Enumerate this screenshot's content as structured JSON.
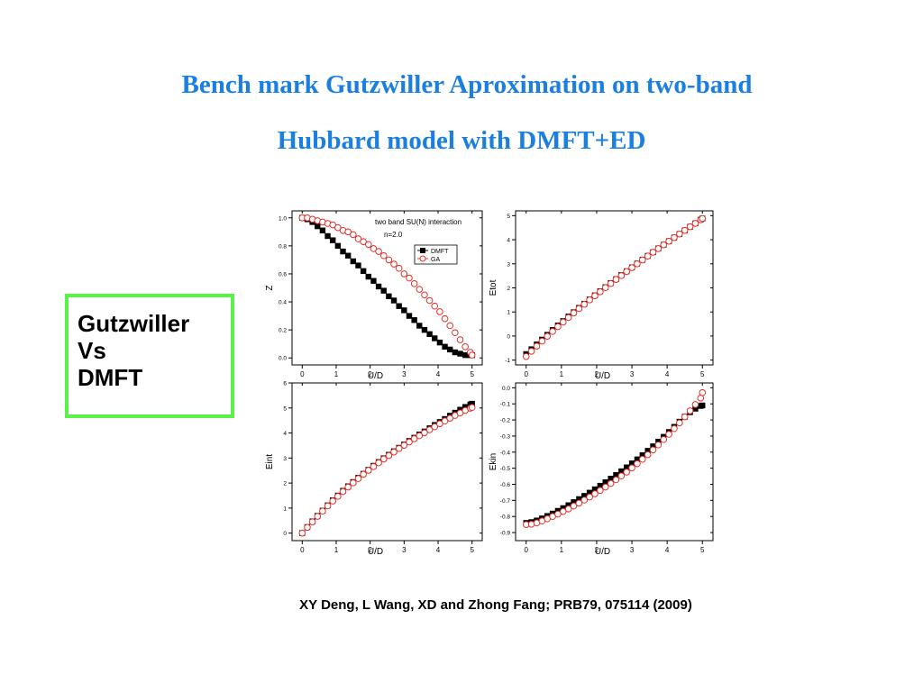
{
  "slide": {
    "title_line1": "Bench mark Gutzwiller Aproximation on two-band",
    "title_line2": "Hubbard model with DMFT+ED",
    "sidebox": {
      "line1": "Gutzwiller",
      "line2": "Vs",
      "line3": "DMFT"
    },
    "citation": "XY Deng, L Wang, XD and Zhong Fang; PRB79, 075114 (2009)",
    "colors": {
      "title": "#1a7fe0",
      "sidebox_border": "#5cf04a",
      "dmft": "#000000",
      "ga": "#e0302a"
    }
  },
  "chart_data": [
    {
      "type": "scatter",
      "xlabel": "U/D",
      "ylabel": "Z",
      "xlim": [
        -0.3,
        5.3
      ],
      "ylim": [
        -0.05,
        1.05
      ],
      "xticks": [
        0,
        1,
        2,
        3,
        4,
        5
      ],
      "yticks": [
        "0.0",
        "0.2",
        "0.4",
        "0.6",
        "0.8",
        "1.0"
      ],
      "annotations": [
        "two band SU(N) interaction",
        "n=2.0"
      ],
      "legend_position": "top-right",
      "series": [
        {
          "name": "DMFT",
          "marker": "filled-square",
          "x": [
            0.0,
            0.15,
            0.3,
            0.45,
            0.6,
            0.75,
            0.9,
            1.05,
            1.2,
            1.35,
            1.5,
            1.65,
            1.8,
            1.95,
            2.1,
            2.25,
            2.4,
            2.55,
            2.7,
            2.85,
            3.0,
            3.15,
            3.3,
            3.45,
            3.6,
            3.75,
            3.9,
            4.05,
            4.2,
            4.35,
            4.5,
            4.65,
            4.8,
            4.95,
            5.0
          ],
          "y": [
            1.0,
            0.99,
            0.97,
            0.94,
            0.91,
            0.87,
            0.84,
            0.8,
            0.76,
            0.73,
            0.69,
            0.66,
            0.62,
            0.58,
            0.55,
            0.51,
            0.48,
            0.44,
            0.41,
            0.37,
            0.34,
            0.3,
            0.27,
            0.23,
            0.2,
            0.17,
            0.14,
            0.11,
            0.08,
            0.06,
            0.04,
            0.03,
            0.02,
            0.02,
            0.02
          ]
        },
        {
          "name": "GA",
          "marker": "open-circle",
          "x": [
            0.0,
            0.15,
            0.3,
            0.45,
            0.6,
            0.75,
            0.9,
            1.05,
            1.2,
            1.35,
            1.5,
            1.65,
            1.8,
            1.95,
            2.1,
            2.25,
            2.4,
            2.55,
            2.7,
            2.85,
            3.0,
            3.15,
            3.3,
            3.45,
            3.6,
            3.75,
            3.9,
            4.05,
            4.2,
            4.35,
            4.5,
            4.65,
            4.8,
            4.95,
            5.0
          ],
          "y": [
            1.0,
            1.0,
            0.99,
            0.98,
            0.97,
            0.96,
            0.95,
            0.93,
            0.91,
            0.9,
            0.88,
            0.85,
            0.83,
            0.81,
            0.78,
            0.76,
            0.73,
            0.7,
            0.67,
            0.64,
            0.6,
            0.57,
            0.53,
            0.49,
            0.45,
            0.41,
            0.37,
            0.33,
            0.28,
            0.23,
            0.18,
            0.13,
            0.08,
            0.04,
            0.02
          ]
        }
      ]
    },
    {
      "type": "scatter",
      "xlabel": "U/D",
      "ylabel": "Etot",
      "xlim": [
        -0.3,
        5.3
      ],
      "ylim": [
        -1.2,
        5.2
      ],
      "xticks": [
        0,
        1,
        2,
        3,
        4,
        5
      ],
      "yticks": [
        "-1",
        "0",
        "1",
        "2",
        "3",
        "4",
        "5"
      ],
      "series": [
        {
          "name": "DMFT",
          "marker": "filled-square",
          "x": [
            0.0,
            0.15,
            0.3,
            0.45,
            0.6,
            0.75,
            0.9,
            1.05,
            1.2,
            1.35,
            1.5,
            1.65,
            1.8,
            1.95,
            2.1,
            2.25,
            2.4,
            2.55,
            2.7,
            2.85,
            3.0,
            3.15,
            3.3,
            3.45,
            3.6,
            3.75,
            3.9,
            4.05,
            4.2,
            4.35,
            4.5,
            4.65,
            4.8,
            4.95,
            5.0
          ],
          "y": [
            -0.75,
            -0.55,
            -0.35,
            -0.15,
            0.05,
            0.25,
            0.44,
            0.62,
            0.81,
            0.99,
            1.17,
            1.34,
            1.52,
            1.69,
            1.86,
            2.03,
            2.2,
            2.36,
            2.53,
            2.69,
            2.85,
            3.01,
            3.17,
            3.33,
            3.48,
            3.64,
            3.79,
            3.94,
            4.09,
            4.24,
            4.39,
            4.54,
            4.68,
            4.83,
            4.88
          ]
        },
        {
          "name": "GA",
          "marker": "open-circle",
          "x": [
            0.0,
            0.15,
            0.3,
            0.45,
            0.6,
            0.75,
            0.9,
            1.05,
            1.2,
            1.35,
            1.5,
            1.65,
            1.8,
            1.95,
            2.1,
            2.25,
            2.4,
            2.55,
            2.7,
            2.85,
            3.0,
            3.15,
            3.3,
            3.45,
            3.6,
            3.75,
            3.9,
            4.05,
            4.2,
            4.35,
            4.5,
            4.65,
            4.8,
            4.95,
            5.0
          ],
          "y": [
            -0.85,
            -0.63,
            -0.42,
            -0.21,
            -0.01,
            0.19,
            0.39,
            0.58,
            0.77,
            0.96,
            1.14,
            1.32,
            1.5,
            1.67,
            1.84,
            2.01,
            2.18,
            2.35,
            2.51,
            2.68,
            2.84,
            3.0,
            3.16,
            3.32,
            3.48,
            3.63,
            3.79,
            3.94,
            4.09,
            4.24,
            4.39,
            4.54,
            4.68,
            4.83,
            4.88
          ]
        }
      ]
    },
    {
      "type": "scatter",
      "xlabel": "U/D",
      "ylabel": "Eint",
      "xlim": [
        -0.3,
        5.3
      ],
      "ylim": [
        -0.3,
        6.0
      ],
      "xticks": [
        0,
        1,
        2,
        3,
        4,
        5
      ],
      "yticks": [
        "0",
        "1",
        "2",
        "3",
        "4",
        "5",
        "6"
      ],
      "series": [
        {
          "name": "DMFT",
          "marker": "filled-square",
          "x": [
            0.0,
            0.15,
            0.3,
            0.45,
            0.6,
            0.75,
            0.9,
            1.05,
            1.2,
            1.35,
            1.5,
            1.65,
            1.8,
            1.95,
            2.1,
            2.25,
            2.4,
            2.55,
            2.7,
            2.85,
            3.0,
            3.15,
            3.3,
            3.45,
            3.6,
            3.75,
            3.9,
            4.05,
            4.2,
            4.35,
            4.5,
            4.65,
            4.8,
            4.95,
            5.0
          ],
          "y": [
            0.0,
            0.24,
            0.47,
            0.69,
            0.9,
            1.11,
            1.31,
            1.5,
            1.69,
            1.87,
            2.04,
            2.21,
            2.37,
            2.53,
            2.69,
            2.84,
            2.99,
            3.13,
            3.27,
            3.41,
            3.54,
            3.68,
            3.81,
            3.94,
            4.06,
            4.19,
            4.32,
            4.44,
            4.56,
            4.69,
            4.81,
            4.93,
            5.04,
            5.14,
            5.17
          ]
        },
        {
          "name": "GA",
          "marker": "open-circle",
          "x": [
            0.0,
            0.15,
            0.3,
            0.45,
            0.6,
            0.75,
            0.9,
            1.05,
            1.2,
            1.35,
            1.5,
            1.65,
            1.8,
            1.95,
            2.1,
            2.25,
            2.4,
            2.55,
            2.7,
            2.85,
            3.0,
            3.15,
            3.3,
            3.45,
            3.6,
            3.75,
            3.9,
            4.05,
            4.2,
            4.35,
            4.5,
            4.65,
            4.8,
            4.95,
            5.0
          ],
          "y": [
            0.0,
            0.23,
            0.45,
            0.67,
            0.88,
            1.09,
            1.28,
            1.47,
            1.66,
            1.84,
            2.01,
            2.18,
            2.35,
            2.51,
            2.66,
            2.81,
            2.96,
            3.1,
            3.24,
            3.38,
            3.51,
            3.64,
            3.77,
            3.89,
            4.01,
            4.13,
            4.25,
            4.37,
            4.48,
            4.59,
            4.7,
            4.8,
            4.9,
            4.99,
            5.02
          ]
        }
      ]
    },
    {
      "type": "scatter",
      "xlabel": "U/D",
      "ylabel": "Ekin",
      "xlim": [
        -0.3,
        5.3
      ],
      "ylim": [
        -0.95,
        0.03
      ],
      "xticks": [
        0,
        1,
        2,
        3,
        4,
        5
      ],
      "yticks": [
        "0.0",
        "-0.1",
        "-0.2",
        "-0.3",
        "-0.4",
        "-0.5",
        "-0.6",
        "-0.7",
        "-0.8",
        "-0.9"
      ],
      "series": [
        {
          "name": "DMFT",
          "marker": "filled-square",
          "x": [
            0.0,
            0.15,
            0.3,
            0.45,
            0.6,
            0.75,
            0.9,
            1.05,
            1.2,
            1.35,
            1.5,
            1.65,
            1.8,
            1.95,
            2.1,
            2.25,
            2.4,
            2.55,
            2.7,
            2.85,
            3.0,
            3.15,
            3.3,
            3.45,
            3.6,
            3.75,
            3.9,
            4.05,
            4.2,
            4.35,
            4.5,
            4.65,
            4.8,
            4.95,
            5.0
          ],
          "y": [
            -0.84,
            -0.835,
            -0.825,
            -0.812,
            -0.797,
            -0.782,
            -0.765,
            -0.748,
            -0.73,
            -0.711,
            -0.692,
            -0.672,
            -0.652,
            -0.631,
            -0.609,
            -0.587,
            -0.565,
            -0.542,
            -0.519,
            -0.495,
            -0.47,
            -0.445,
            -0.419,
            -0.392,
            -0.364,
            -0.335,
            -0.305,
            -0.275,
            -0.243,
            -0.211,
            -0.18,
            -0.152,
            -0.13,
            -0.113,
            -0.11
          ]
        },
        {
          "name": "GA",
          "marker": "open-circle",
          "x": [
            0.0,
            0.15,
            0.3,
            0.45,
            0.6,
            0.75,
            0.9,
            1.05,
            1.2,
            1.35,
            1.5,
            1.65,
            1.8,
            1.95,
            2.1,
            2.25,
            2.4,
            2.55,
            2.7,
            2.85,
            3.0,
            3.15,
            3.3,
            3.45,
            3.6,
            3.75,
            3.9,
            4.05,
            4.2,
            4.35,
            4.5,
            4.65,
            4.8,
            4.95,
            5.0
          ],
          "y": [
            -0.85,
            -0.848,
            -0.84,
            -0.828,
            -0.814,
            -0.8,
            -0.785,
            -0.769,
            -0.753,
            -0.735,
            -0.717,
            -0.698,
            -0.679,
            -0.659,
            -0.638,
            -0.617,
            -0.595,
            -0.572,
            -0.548,
            -0.524,
            -0.498,
            -0.472,
            -0.444,
            -0.416,
            -0.386,
            -0.355,
            -0.322,
            -0.289,
            -0.254,
            -0.218,
            -0.181,
            -0.143,
            -0.104,
            -0.064,
            -0.03
          ]
        }
      ]
    }
  ]
}
